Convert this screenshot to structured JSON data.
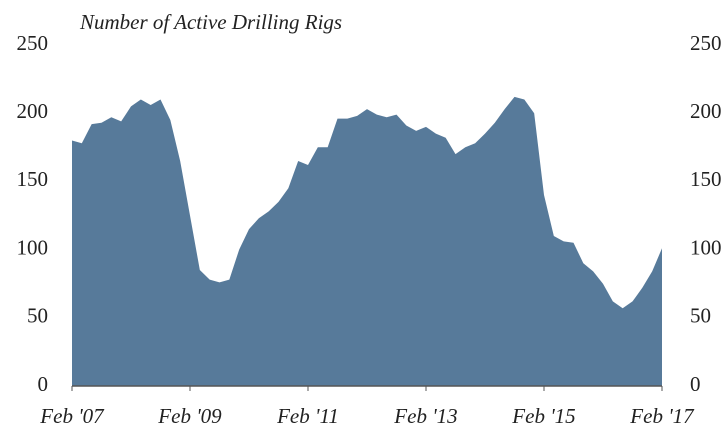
{
  "chart_data": {
    "type": "area",
    "title": "Number of Active Drilling Rigs",
    "categories": [
      "Feb '07",
      null,
      null,
      null,
      null,
      null,
      null,
      null,
      null,
      null,
      null,
      null,
      "Feb '09",
      null,
      null,
      null,
      null,
      null,
      null,
      null,
      null,
      null,
      null,
      null,
      "Feb '11",
      null,
      null,
      null,
      null,
      null,
      null,
      null,
      null,
      null,
      null,
      null,
      "Feb '13",
      null,
      null,
      null,
      null,
      null,
      null,
      null,
      null,
      null,
      null,
      null,
      "Feb '15",
      null,
      null,
      null,
      null,
      null,
      null,
      null,
      null,
      null,
      null,
      null,
      "Feb '17"
    ],
    "values": [
      180,
      178,
      192,
      193,
      197,
      194,
      205,
      210,
      206,
      210,
      195,
      165,
      125,
      85,
      78,
      76,
      78,
      100,
      115,
      123,
      128,
      135,
      145,
      165,
      162,
      175,
      175,
      196,
      196,
      198,
      203,
      199,
      197,
      199,
      191,
      187,
      190,
      185,
      182,
      170,
      175,
      178,
      185,
      193,
      203,
      212,
      210,
      200,
      140,
      110,
      106,
      105,
      90,
      84,
      75,
      62,
      57,
      62,
      72,
      84,
      101
    ],
    "color": "#577a9a",
    "ylim": [
      0,
      250
    ],
    "yticks": [
      0,
      50,
      100,
      150,
      200,
      250
    ],
    "y2lim": [
      0,
      250
    ],
    "y2ticks": [
      0,
      50,
      100,
      150,
      200,
      250
    ]
  }
}
